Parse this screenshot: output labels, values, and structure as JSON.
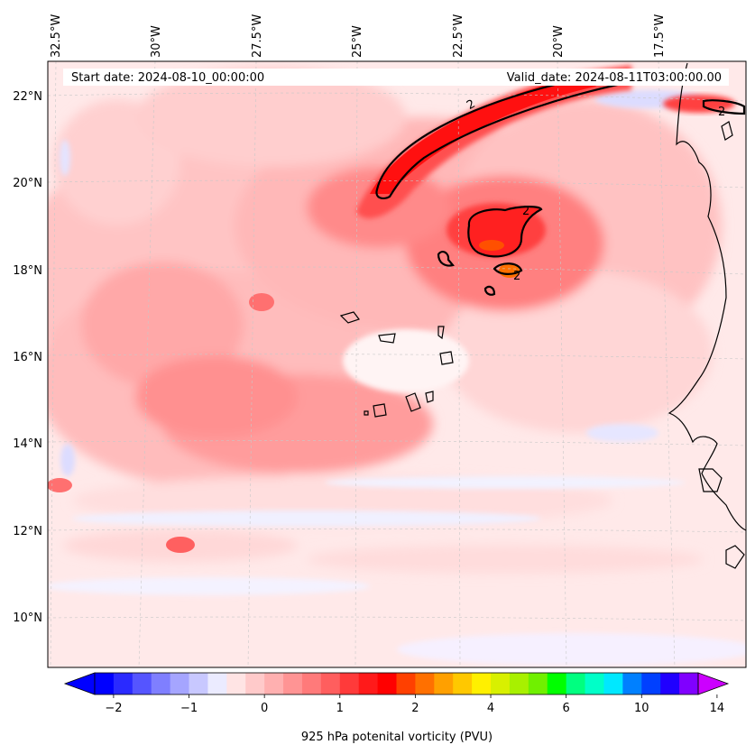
{
  "map": {
    "header": {
      "start_date": "Start date: 2024-08-10_00:00:00",
      "valid_date": "Valid_date: 2024-08-11T03:00:00.00"
    },
    "lon_labels": [
      "32.5°W",
      "30°W",
      "27.5°W",
      "25°W",
      "22.5°W",
      "20°W",
      "17.5°W"
    ],
    "lat_labels": [
      "22°N",
      "20°N",
      "18°N",
      "16°N",
      "14°N",
      "12°N",
      "10°N"
    ],
    "contour_level_label": "2"
  },
  "colorbar": {
    "label": "925 hPa potenital vorticity (PVU)",
    "tick_labels": [
      "−2",
      "−1",
      "0",
      "1",
      "2",
      "4",
      "6",
      "10",
      "14"
    ],
    "colors": [
      "#0000ff",
      "#2a2aff",
      "#5555ff",
      "#7f7fff",
      "#a5a5ff",
      "#c8c8ff",
      "#ebebff",
      "#ffe4e4",
      "#ffcaca",
      "#ffb0b0",
      "#ff9494",
      "#ff7a7a",
      "#ff5e5e",
      "#ff3a3a",
      "#ff1a1a",
      "#ff0000",
      "#ff4000",
      "#ff7000",
      "#ffa000",
      "#ffc800",
      "#fff000",
      "#d8f000",
      "#a8f000",
      "#70f000",
      "#00ff00",
      "#00ff80",
      "#00ffc8",
      "#00e8ff",
      "#0080ff",
      "#0040ff",
      "#2000ff",
      "#8000ff"
    ],
    "extend_min_color": "#0000ff",
    "extend_max_color": "#cc00ff"
  }
}
